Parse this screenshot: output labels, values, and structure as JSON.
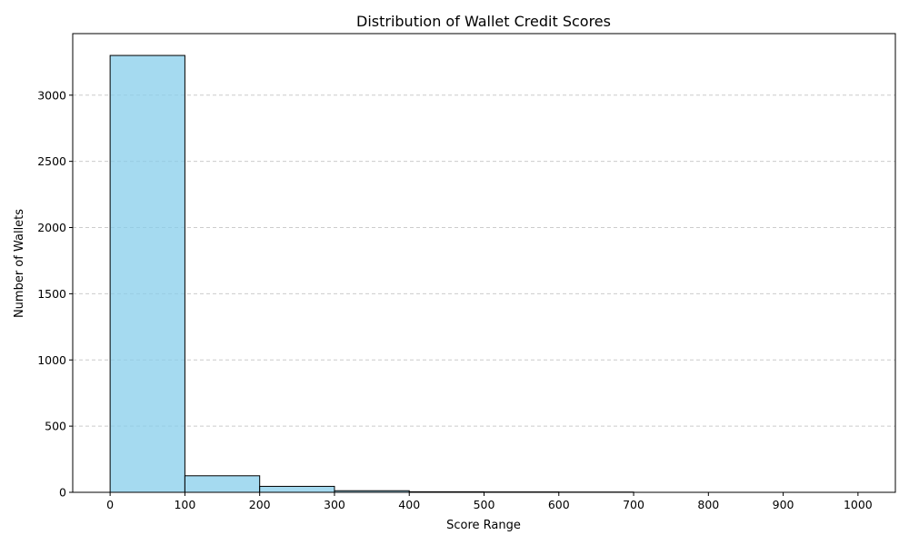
{
  "chart_data": {
    "type": "bar",
    "title": "Distribution of Wallet Credit Scores",
    "xlabel": "Score Range",
    "ylabel": "Number of Wallets",
    "bins": [
      {
        "start": 0,
        "end": 100,
        "value": 3300
      },
      {
        "start": 100,
        "end": 200,
        "value": 125
      },
      {
        "start": 200,
        "end": 300,
        "value": 45
      },
      {
        "start": 300,
        "end": 400,
        "value": 12
      },
      {
        "start": 400,
        "end": 500,
        "value": 4
      },
      {
        "start": 500,
        "end": 600,
        "value": 3
      },
      {
        "start": 600,
        "end": 700,
        "value": 2
      },
      {
        "start": 700,
        "end": 800,
        "value": 0
      },
      {
        "start": 800,
        "end": 900,
        "value": 0
      },
      {
        "start": 900,
        "end": 1000,
        "value": 0
      }
    ],
    "xlim": [
      -50,
      1050
    ],
    "ylim": [
      0,
      3465
    ],
    "xticks": [
      "0",
      "100",
      "200",
      "300",
      "400",
      "500",
      "600",
      "700",
      "800",
      "900",
      "1000"
    ],
    "yticks": [
      "0",
      "500",
      "1000",
      "1500",
      "2000",
      "2500",
      "3000"
    ],
    "grid": "y-dashed",
    "colors": {
      "bar_fill": "#87ceeb",
      "bar_edge": "#000000",
      "grid": "#cccccc"
    }
  }
}
